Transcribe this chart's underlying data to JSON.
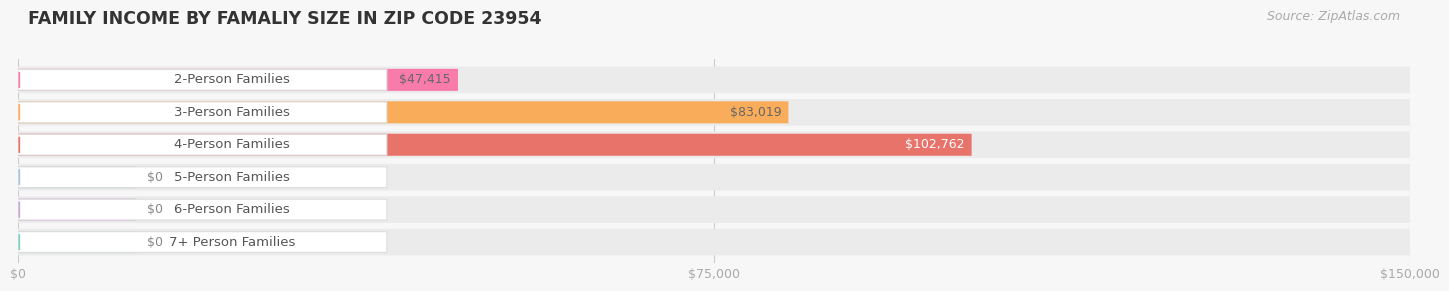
{
  "title": "FAMILY INCOME BY FAMALIY SIZE IN ZIP CODE 23954",
  "source": "Source: ZipAtlas.com",
  "categories": [
    "2-Person Families",
    "3-Person Families",
    "4-Person Families",
    "5-Person Families",
    "6-Person Families",
    "7+ Person Families"
  ],
  "values": [
    47415,
    83019,
    102762,
    0,
    0,
    0
  ],
  "bar_colors": [
    "#F97BAA",
    "#F9AD5A",
    "#E8736A",
    "#A8C4E0",
    "#C9A8D4",
    "#7ECFC8"
  ],
  "xlim": [
    0,
    150000
  ],
  "xticks": [
    0,
    75000,
    150000
  ],
  "xtick_labels": [
    "$0",
    "$75,000",
    "$150,000"
  ],
  "bg_color": "#f7f7f7",
  "row_bg_color": "#ebebeb",
  "pill_color": "#ffffff",
  "title_fontsize": 12.5,
  "label_fontsize": 9.5,
  "value_fontsize": 9,
  "source_fontsize": 9,
  "value_colors_inside": [
    "#666666",
    "#666666",
    "#ffffff",
    "#666666",
    "#666666",
    "#666666"
  ]
}
